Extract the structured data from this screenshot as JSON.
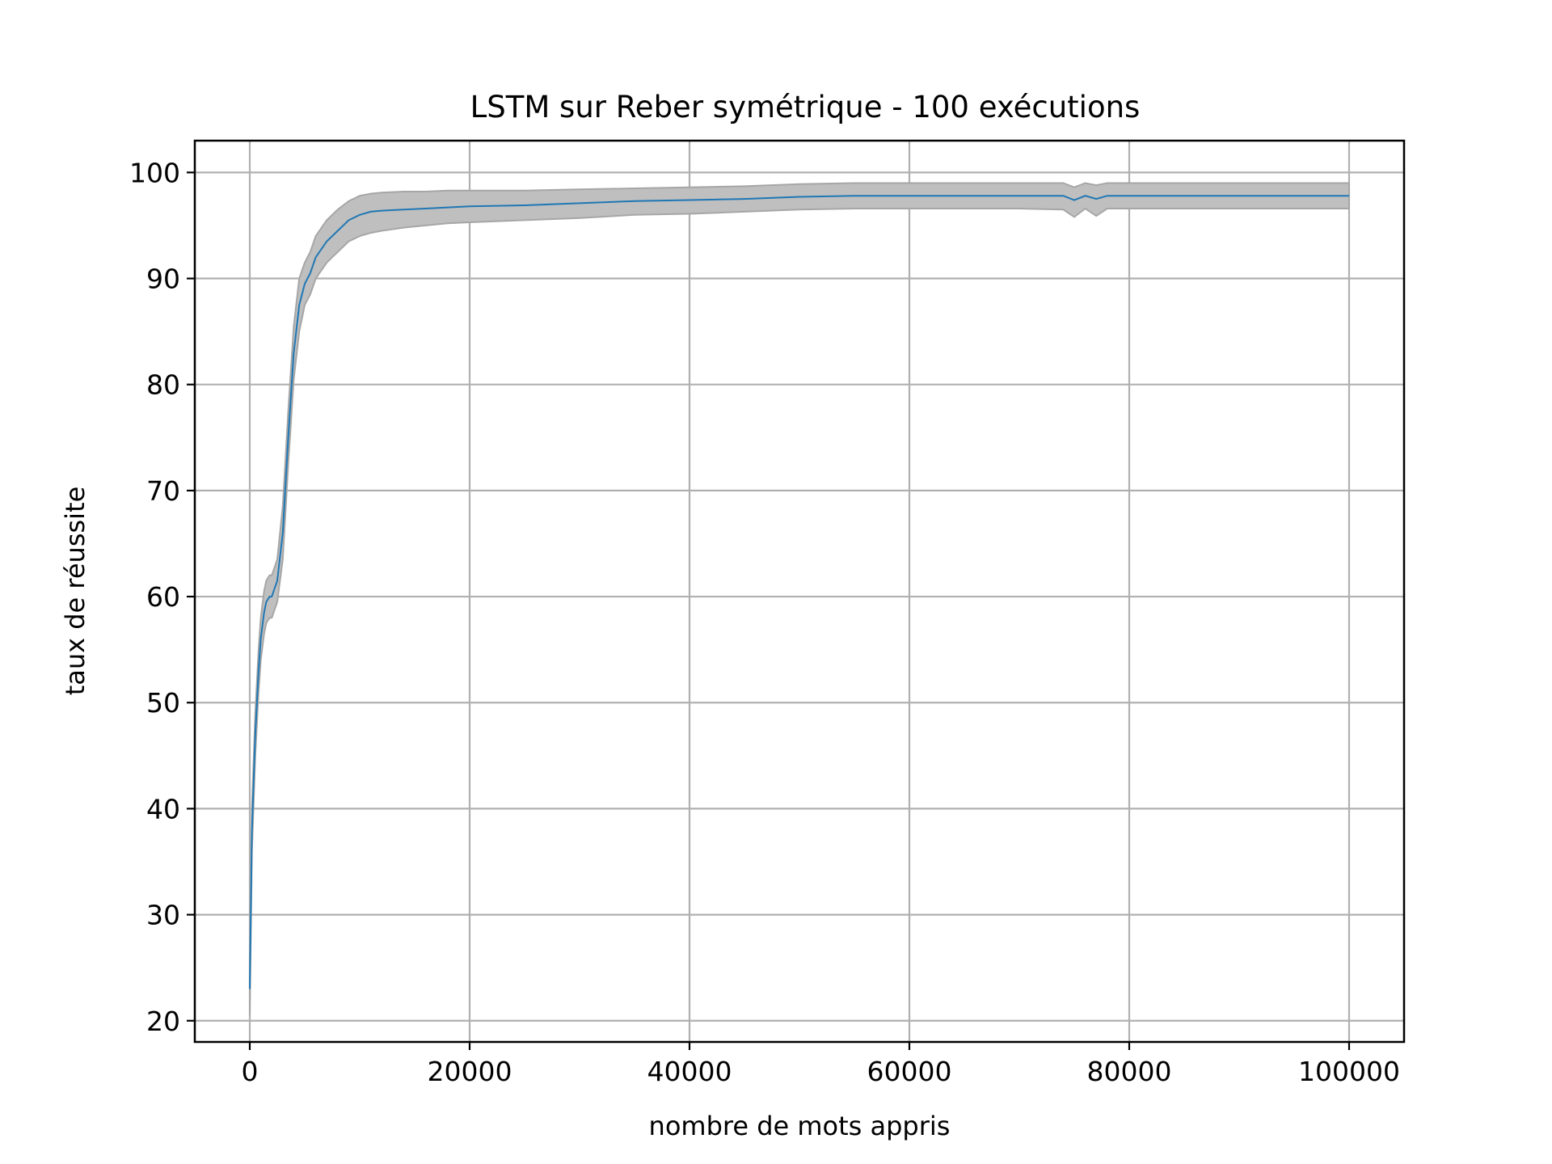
{
  "chart_data": {
    "type": "line",
    "title": "LSTM sur Reber symétrique - 100 exécutions",
    "xlabel": "nombre de mots appris",
    "ylabel": "taux de réussite",
    "xlim": [
      -5000,
      105000
    ],
    "ylim": [
      18,
      103
    ],
    "xticks": [
      0,
      20000,
      40000,
      60000,
      80000,
      100000
    ],
    "xtick_labels": [
      "0",
      "20000",
      "40000",
      "60000",
      "80000",
      "100000"
    ],
    "yticks": [
      20,
      30,
      40,
      50,
      60,
      70,
      80,
      90,
      100
    ],
    "ytick_labels": [
      "20",
      "30",
      "40",
      "50",
      "60",
      "70",
      "80",
      "90",
      "100"
    ],
    "grid": true,
    "colors": {
      "line": "#1f77b4",
      "band_fill": "#bfbfbf",
      "band_edge": "#a6a6a6",
      "grid": "#b0b0b0"
    },
    "series": [
      {
        "x": [
          0,
          200,
          500,
          800,
          1000,
          1300,
          1500,
          1800,
          2000,
          2500,
          3000,
          3500,
          4000,
          4500,
          5000,
          5500,
          6000,
          7000,
          8000,
          9000,
          10000,
          11000,
          12000,
          14000,
          16000,
          18000,
          20000,
          25000,
          30000,
          35000,
          40000,
          45000,
          50000,
          55000,
          60000,
          70000,
          74000,
          75000,
          76000,
          77000,
          78000,
          80000,
          90000,
          100000
        ],
        "y": [
          23,
          38,
          47,
          53,
          56,
          58.5,
          59.5,
          60,
          60,
          61.5,
          66,
          75,
          83,
          87.5,
          89.5,
          90.5,
          92,
          93.5,
          94.5,
          95.5,
          96,
          96.3,
          96.4,
          96.5,
          96.6,
          96.7,
          96.8,
          96.9,
          97.1,
          97.3,
          97.4,
          97.5,
          97.7,
          97.8,
          97.8,
          97.8,
          97.8,
          97.4,
          97.8,
          97.5,
          97.8,
          97.8,
          97.8,
          97.8
        ],
        "lower": [
          20.5,
          36,
          45,
          51,
          54,
          56.5,
          57.5,
          58,
          58,
          59.5,
          63.5,
          72.5,
          80.5,
          85,
          87.5,
          88.5,
          90,
          91.5,
          92.5,
          93.5,
          94,
          94.3,
          94.5,
          94.8,
          95,
          95.2,
          95.3,
          95.5,
          95.7,
          96,
          96.1,
          96.3,
          96.5,
          96.6,
          96.6,
          96.6,
          96.5,
          95.8,
          96.6,
          95.9,
          96.6,
          96.6,
          96.6,
          96.6
        ],
        "upper": [
          25.5,
          40,
          49,
          55,
          58,
          60.5,
          61.5,
          62,
          62,
          63.5,
          68.5,
          77.5,
          85.5,
          90,
          91.5,
          92.5,
          94,
          95.5,
          96.5,
          97.3,
          97.8,
          98,
          98.1,
          98.2,
          98.2,
          98.3,
          98.3,
          98.3,
          98.4,
          98.5,
          98.6,
          98.7,
          98.9,
          99,
          99,
          99,
          99,
          98.6,
          99,
          98.8,
          99,
          99,
          99,
          99
        ]
      }
    ]
  }
}
